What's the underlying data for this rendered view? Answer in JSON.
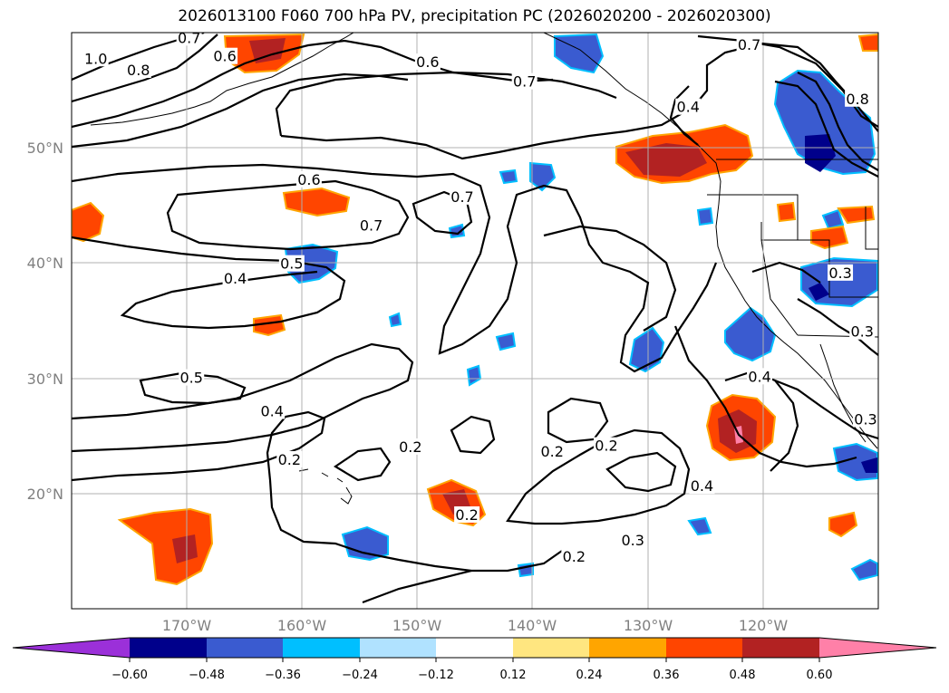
{
  "title": "2026013100 F060 700 hPa PV, precipitation PC (2026020200 - 2026020300)",
  "map": {
    "lon_range": [
      -180,
      -110
    ],
    "lat_range": [
      10,
      60
    ],
    "lat_ticks": [
      {
        "lat": 50,
        "label": "50°N"
      },
      {
        "lat": 40,
        "label": "40°N"
      },
      {
        "lat": 30,
        "label": "30°N"
      },
      {
        "lat": 20,
        "label": "20°N"
      }
    ],
    "lon_ticks": [
      {
        "lon": -170,
        "label": "170°W"
      },
      {
        "lon": -160,
        "label": "160°W"
      },
      {
        "lon": -150,
        "label": "150°W"
      },
      {
        "lon": -140,
        "label": "140°W"
      },
      {
        "lon": -130,
        "label": "130°W"
      },
      {
        "lon": -120,
        "label": "120°W"
      }
    ]
  },
  "colorbar": {
    "colors": [
      "#9b30d9",
      "#00008b",
      "#3a5bd0",
      "#00bfff",
      "#b0e2ff",
      "#ffffff",
      "#ffe680",
      "#ffa500",
      "#ff4500",
      "#b22222",
      "#ff80a8"
    ],
    "tick_labels": [
      "−0.60",
      "−0.48",
      "−0.36",
      "−0.24",
      "−0.12",
      "0.12",
      "0.24",
      "0.36",
      "0.48",
      "0.60"
    ]
  },
  "chart_data": {
    "type": "contour-map",
    "title": "2026013100 F060 700 hPa PV, precipitation PC (2026020200 - 2026020300)",
    "contour_variable": "700 hPa PV",
    "fill_variable": "precipitation PC",
    "contour_labels": [
      {
        "text": "1.0",
        "lon": -177.9,
        "lat": 57.7
      },
      {
        "text": "0.8",
        "lon": -174.2,
        "lat": 56.7
      },
      {
        "text": "0.6",
        "lon": -166.7,
        "lat": 57.9
      },
      {
        "text": "0.7",
        "lon": -169.8,
        "lat": 59.5
      },
      {
        "text": "0.6",
        "lon": -149.1,
        "lat": 57.4
      },
      {
        "text": "0.7",
        "lon": -140.7,
        "lat": 55.7
      },
      {
        "text": "0.4",
        "lon": -126.5,
        "lat": 53.5
      },
      {
        "text": "0.7",
        "lon": -121.2,
        "lat": 58.9
      },
      {
        "text": "0.8",
        "lon": -111.8,
        "lat": 54.2
      },
      {
        "text": "0.6",
        "lon": -159.4,
        "lat": 47.2
      },
      {
        "text": "0.7",
        "lon": -154.0,
        "lat": 43.2
      },
      {
        "text": "0.7",
        "lon": -146.1,
        "lat": 45.7
      },
      {
        "text": "0.5",
        "lon": -160.9,
        "lat": 39.9
      },
      {
        "text": "0.4",
        "lon": -165.8,
        "lat": 38.6
      },
      {
        "text": "0.5",
        "lon": -169.6,
        "lat": 30.0
      },
      {
        "text": "0.4",
        "lon": -162.6,
        "lat": 27.1
      },
      {
        "text": "0.2",
        "lon": -161.1,
        "lat": 22.9
      },
      {
        "text": "0.2",
        "lon": -150.6,
        "lat": 24.0
      },
      {
        "text": "0.2",
        "lon": -145.7,
        "lat": 18.1
      },
      {
        "text": "0.2",
        "lon": -133.6,
        "lat": 24.1
      },
      {
        "text": "0.2",
        "lon": -138.3,
        "lat": 23.6
      },
      {
        "text": "0.4",
        "lon": -125.3,
        "lat": 20.6
      },
      {
        "text": "0.3",
        "lon": -131.3,
        "lat": 15.9
      },
      {
        "text": "0.2",
        "lon": -136.4,
        "lat": 14.5
      },
      {
        "text": "0.4",
        "lon": -120.3,
        "lat": 30.1
      },
      {
        "text": "0.3",
        "lon": -113.3,
        "lat": 39.1
      },
      {
        "text": "0.3",
        "lon": -111.4,
        "lat": 34.0
      },
      {
        "text": "0.3",
        "lon": -111.1,
        "lat": 26.4
      }
    ]
  }
}
